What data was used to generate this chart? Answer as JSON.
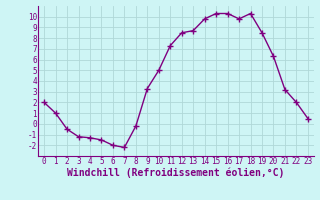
{
  "x": [
    0,
    1,
    2,
    3,
    4,
    5,
    6,
    7,
    8,
    9,
    10,
    11,
    12,
    13,
    14,
    15,
    16,
    17,
    18,
    19,
    20,
    21,
    22,
    23
  ],
  "y": [
    2.0,
    1.0,
    -0.5,
    -1.2,
    -1.3,
    -1.5,
    -2.0,
    -2.2,
    -0.2,
    3.3,
    5.0,
    7.3,
    8.5,
    8.7,
    9.8,
    10.3,
    10.3,
    9.8,
    10.3,
    8.5,
    6.3,
    3.2,
    2.0,
    0.5
  ],
  "line_color": "#800080",
  "marker": "+",
  "marker_size": 4,
  "linewidth": 1.0,
  "xlabel": "Windchill (Refroidissement éolien,°C)",
  "xlabel_color": "#800080",
  "ylim": [
    -3,
    11
  ],
  "xlim": [
    -0.5,
    23.5
  ],
  "yticks": [
    -2,
    -1,
    0,
    1,
    2,
    3,
    4,
    5,
    6,
    7,
    8,
    9,
    10
  ],
  "ytick_labels": [
    "-2",
    "-1",
    "0",
    "1",
    "2",
    "3",
    "4",
    "5",
    "6",
    "7",
    "8",
    "9",
    "10"
  ],
  "xticks": [
    0,
    1,
    2,
    3,
    4,
    5,
    6,
    7,
    8,
    9,
    10,
    11,
    12,
    13,
    14,
    15,
    16,
    17,
    18,
    19,
    20,
    21,
    22,
    23
  ],
  "bg_color": "#cef5f5",
  "grid_color": "#b0d8d8",
  "tick_color": "#800080",
  "axis_color": "#800080",
  "label_fontsize": 5.5,
  "xlabel_fontsize": 7.0,
  "markeredgewidth": 1.0
}
